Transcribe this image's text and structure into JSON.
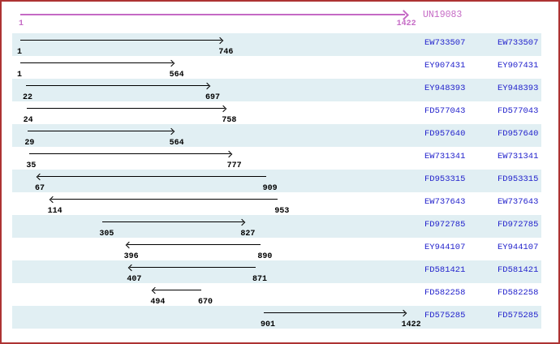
{
  "colors": {
    "page_border": "#AD3333",
    "reference": "#C56AC5",
    "accession_link": "#2323CC",
    "row_stripe": "#E1EFF3",
    "alignment_arrow": "#000000"
  },
  "header": {
    "reference_name": "UN19083",
    "reference_start_label": "1",
    "reference_end_label": "1422"
  },
  "chart_data": {
    "type": "span",
    "x_range": [
      1,
      1422
    ],
    "reference": {
      "label": "UN19083",
      "start": 1,
      "end": 1422,
      "direction": "right",
      "color": "#C56AC5"
    },
    "legend_position": "right",
    "label_columns_per_row": 2,
    "series": [
      {
        "label": "EW733507",
        "start": 1,
        "end": 746,
        "direction": "right"
      },
      {
        "label": "EY907431",
        "start": 1,
        "end": 564,
        "direction": "right"
      },
      {
        "label": "EY948393",
        "start": 22,
        "end": 697,
        "direction": "right"
      },
      {
        "label": "FD577043",
        "start": 24,
        "end": 758,
        "direction": "right"
      },
      {
        "label": "FD957640",
        "start": 29,
        "end": 564,
        "direction": "right"
      },
      {
        "label": "EW731341",
        "start": 35,
        "end": 777,
        "direction": "right"
      },
      {
        "label": "FD953315",
        "start": 67,
        "end": 909,
        "direction": "left"
      },
      {
        "label": "EW737643",
        "start": 114,
        "end": 953,
        "direction": "left"
      },
      {
        "label": "FD972785",
        "start": 305,
        "end": 827,
        "direction": "right"
      },
      {
        "label": "EY944107",
        "start": 396,
        "end": 890,
        "direction": "left"
      },
      {
        "label": "FD581421",
        "start": 407,
        "end": 871,
        "direction": "left"
      },
      {
        "label": "FD582258",
        "start": 494,
        "end": 670,
        "direction": "left"
      },
      {
        "label": "FD575285",
        "start": 901,
        "end": 1422,
        "direction": "right"
      }
    ]
  }
}
